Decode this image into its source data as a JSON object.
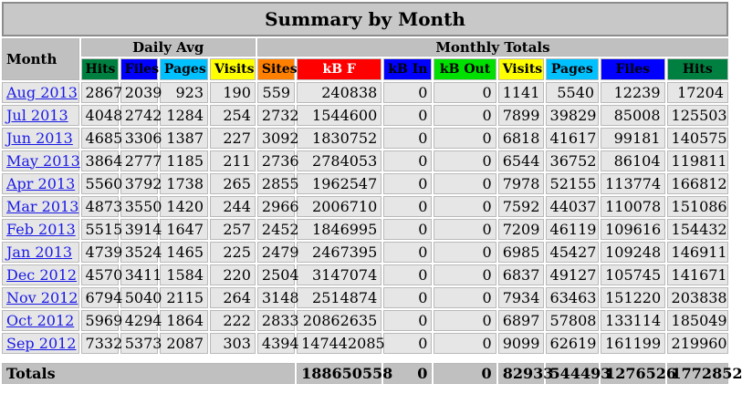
{
  "title": "Summary by Month",
  "groups": {
    "month_label": "Month",
    "daily_avg": "Daily Avg",
    "monthly_totals": "Monthly Totals"
  },
  "columns": {
    "daily": [
      {
        "label": "Hits",
        "bg": "#008040",
        "fg": "#000000"
      },
      {
        "label": "Files",
        "bg": "#0000ff",
        "fg": "#000000"
      },
      {
        "label": "Pages",
        "bg": "#00c0ff",
        "fg": "#000000"
      },
      {
        "label": "Visits",
        "bg": "#ffff00",
        "fg": "#000000"
      }
    ],
    "monthly": [
      {
        "label": "Sites",
        "bg": "#ff8000",
        "fg": "#000000"
      },
      {
        "label": "kB F",
        "bg": "#ff0000",
        "fg": "#ffffff"
      },
      {
        "label": "kB In",
        "bg": "#0000ff",
        "fg": "#000000"
      },
      {
        "label": "kB Out",
        "bg": "#00e000",
        "fg": "#000000"
      },
      {
        "label": "Visits",
        "bg": "#ffff00",
        "fg": "#000000"
      },
      {
        "label": "Pages",
        "bg": "#00c0ff",
        "fg": "#000000"
      },
      {
        "label": "Files",
        "bg": "#0000ff",
        "fg": "#000000"
      },
      {
        "label": "Hits",
        "bg": "#008040",
        "fg": "#000000"
      }
    ]
  },
  "rows": [
    {
      "month": "Aug 2013",
      "d": [
        "2867",
        "2039",
        "923",
        "190"
      ],
      "m": [
        "559",
        "240838",
        "0",
        "0",
        "1141",
        "5540",
        "12239",
        "17204"
      ]
    },
    {
      "month": "Jul 2013",
      "d": [
        "4048",
        "2742",
        "1284",
        "254"
      ],
      "m": [
        "2732",
        "1544600",
        "0",
        "0",
        "7899",
        "39829",
        "85008",
        "125503"
      ]
    },
    {
      "month": "Jun 2013",
      "d": [
        "4685",
        "3306",
        "1387",
        "227"
      ],
      "m": [
        "3092",
        "1830752",
        "0",
        "0",
        "6818",
        "41617",
        "99181",
        "140575"
      ]
    },
    {
      "month": "May 2013",
      "d": [
        "3864",
        "2777",
        "1185",
        "211"
      ],
      "m": [
        "2736",
        "2784053",
        "0",
        "0",
        "6544",
        "36752",
        "86104",
        "119811"
      ]
    },
    {
      "month": "Apr 2013",
      "d": [
        "5560",
        "3792",
        "1738",
        "265"
      ],
      "m": [
        "2855",
        "1962547",
        "0",
        "0",
        "7978",
        "52155",
        "113774",
        "166812"
      ]
    },
    {
      "month": "Mar 2013",
      "d": [
        "4873",
        "3550",
        "1420",
        "244"
      ],
      "m": [
        "2966",
        "2006710",
        "0",
        "0",
        "7592",
        "44037",
        "110078",
        "151086"
      ]
    },
    {
      "month": "Feb 2013",
      "d": [
        "5515",
        "3914",
        "1647",
        "257"
      ],
      "m": [
        "2452",
        "1846995",
        "0",
        "0",
        "7209",
        "46119",
        "109616",
        "154432"
      ]
    },
    {
      "month": "Jan 2013",
      "d": [
        "4739",
        "3524",
        "1465",
        "225"
      ],
      "m": [
        "2479",
        "2467395",
        "0",
        "0",
        "6985",
        "45427",
        "109248",
        "146911"
      ]
    },
    {
      "month": "Dec 2012",
      "d": [
        "4570",
        "3411",
        "1584",
        "220"
      ],
      "m": [
        "2504",
        "3147074",
        "0",
        "0",
        "6837",
        "49127",
        "105745",
        "141671"
      ]
    },
    {
      "month": "Nov 2012",
      "d": [
        "6794",
        "5040",
        "2115",
        "264"
      ],
      "m": [
        "3148",
        "2514874",
        "0",
        "0",
        "7934",
        "63463",
        "151220",
        "203838"
      ]
    },
    {
      "month": "Oct 2012",
      "d": [
        "5969",
        "4294",
        "1864",
        "222"
      ],
      "m": [
        "2833",
        "20862635",
        "0",
        "0",
        "6897",
        "57808",
        "133114",
        "185049"
      ]
    },
    {
      "month": "Sep 2012",
      "d": [
        "7332",
        "5373",
        "2087",
        "303"
      ],
      "m": [
        "4394",
        "147442085",
        "0",
        "0",
        "9099",
        "62619",
        "161199",
        "219960"
      ]
    }
  ],
  "totals": {
    "label": "Totals",
    "kbf": "188650558",
    "kbin": "0",
    "kbout": "0",
    "visits": "82933",
    "pages": "544493",
    "files": "1276526",
    "hits": "1772852"
  }
}
